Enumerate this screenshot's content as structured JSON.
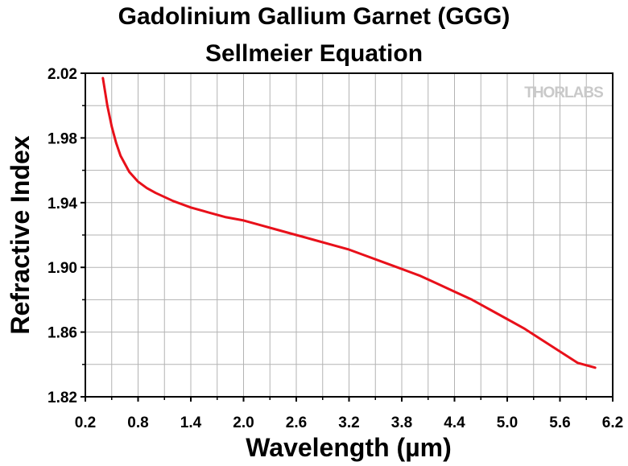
{
  "chart_data": {
    "type": "line",
    "title": "Gadolinium Gallium Garnet (GGG)",
    "subtitle": "Sellmeier Equation",
    "xlabel": "Wavelength (µm)",
    "ylabel": "Refractive Index",
    "xlim": [
      0.2,
      6.2
    ],
    "ylim": [
      1.82,
      2.02
    ],
    "xticks": [
      "0.2",
      "0.8",
      "1.4",
      "2.0",
      "2.6",
      "3.2",
      "3.8",
      "4.4",
      "5.0",
      "5.6",
      "6.2"
    ],
    "yticks": [
      "1.82",
      "1.86",
      "1.90",
      "1.94",
      "1.98",
      "2.02"
    ],
    "grid": true,
    "line_color": "#e8101a",
    "series": [
      {
        "x": [
          0.4,
          0.45,
          0.5,
          0.55,
          0.6,
          0.7,
          0.8,
          0.9,
          1.0,
          1.2,
          1.4,
          1.6,
          1.8,
          2.0,
          2.2,
          2.4,
          2.6,
          2.8,
          3.0,
          3.2,
          3.4,
          3.6,
          3.8,
          4.0,
          4.2,
          4.4,
          4.6,
          4.8,
          5.0,
          5.2,
          5.4,
          5.6,
          5.8,
          6.0
        ],
        "y": [
          2.017,
          2.0,
          1.987,
          1.977,
          1.969,
          1.959,
          1.953,
          1.949,
          1.946,
          1.941,
          1.937,
          1.934,
          1.931,
          1.929,
          1.926,
          1.923,
          1.92,
          1.917,
          1.914,
          1.911,
          1.907,
          1.903,
          1.899,
          1.895,
          1.89,
          1.885,
          1.88,
          1.874,
          1.868,
          1.862,
          1.855,
          1.848,
          1.841,
          1.838
        ]
      }
    ]
  },
  "watermark": "THORLABS"
}
